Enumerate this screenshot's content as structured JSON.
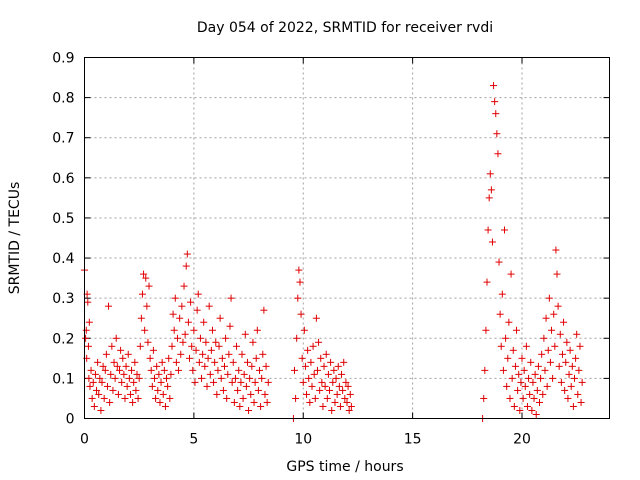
{
  "chart_data": {
    "type": "scatter",
    "title": "Day 054 of 2022, SRMTID for receiver rvdi",
    "xlabel": "GPS time / hours",
    "ylabel": "SRMTID / TECUs",
    "xlim": [
      0,
      24
    ],
    "ylim": [
      0,
      0.9
    ],
    "x_ticks": [
      "0",
      "5",
      "10",
      "15",
      "20"
    ],
    "y_ticks": [
      "0",
      "0.1",
      "0.2",
      "0.3",
      "0.4",
      "0.5",
      "0.6",
      "0.7",
      "0.8",
      "0.9"
    ],
    "marker": "+",
    "color": "#e00000",
    "grid": true,
    "series": [
      {
        "name": "SRMTID",
        "points": [
          [
            0.0,
            0.37
          ],
          [
            0.05,
            0.2
          ],
          [
            0.08,
            0.22
          ],
          [
            0.1,
            0.15
          ],
          [
            0.12,
            0.31
          ],
          [
            0.15,
            0.29
          ],
          [
            0.18,
            0.18
          ],
          [
            0.2,
            0.1
          ],
          [
            0.22,
            0.24
          ],
          [
            0.25,
            0.08
          ],
          [
            0.3,
            0.12
          ],
          [
            0.35,
            0.05
          ],
          [
            0.4,
            0.09
          ],
          [
            0.45,
            0.03
          ],
          [
            0.5,
            0.11
          ],
          [
            0.55,
            0.07
          ],
          [
            0.6,
            0.14
          ],
          [
            0.65,
            0.06
          ],
          [
            0.7,
            0.1
          ],
          [
            0.75,
            0.02
          ],
          [
            0.8,
            0.09
          ],
          [
            0.85,
            0.13
          ],
          [
            0.9,
            0.05
          ],
          [
            0.95,
            0.12
          ],
          [
            1.0,
            0.16
          ],
          [
            1.05,
            0.08
          ],
          [
            1.1,
            0.28
          ],
          [
            1.15,
            0.04
          ],
          [
            1.2,
            0.11
          ],
          [
            1.25,
            0.18
          ],
          [
            1.3,
            0.07
          ],
          [
            1.35,
            0.14
          ],
          [
            1.4,
            0.1
          ],
          [
            1.45,
            0.2
          ],
          [
            1.5,
            0.13
          ],
          [
            1.55,
            0.06
          ],
          [
            1.6,
            0.12
          ],
          [
            1.65,
            0.17
          ],
          [
            1.7,
            0.09
          ],
          [
            1.75,
            0.15
          ],
          [
            1.8,
            0.11
          ],
          [
            1.85,
            0.05
          ],
          [
            1.9,
            0.13
          ],
          [
            1.95,
            0.08
          ],
          [
            2.0,
            0.16
          ],
          [
            2.05,
            0.1
          ],
          [
            2.1,
            0.06
          ],
          [
            2.15,
            0.12
          ],
          [
            2.2,
            0.04
          ],
          [
            2.25,
            0.09
          ],
          [
            2.3,
            0.14
          ],
          [
            2.35,
            0.07
          ],
          [
            2.4,
            0.11
          ],
          [
            2.45,
            0.05
          ],
          [
            2.5,
            0.1
          ],
          [
            2.55,
            0.18
          ],
          [
            2.6,
            0.25
          ],
          [
            2.65,
            0.31
          ],
          [
            2.7,
            0.36
          ],
          [
            2.75,
            0.22
          ],
          [
            2.8,
            0.35
          ],
          [
            2.85,
            0.28
          ],
          [
            2.9,
            0.19
          ],
          [
            2.95,
            0.33
          ],
          [
            3.0,
            0.15
          ],
          [
            3.05,
            0.12
          ],
          [
            3.1,
            0.08
          ],
          [
            3.15,
            0.17
          ],
          [
            3.2,
            0.1
          ],
          [
            3.25,
            0.05
          ],
          [
            3.3,
            0.13
          ],
          [
            3.35,
            0.07
          ],
          [
            3.4,
            0.11
          ],
          [
            3.45,
            0.04
          ],
          [
            3.5,
            0.09
          ],
          [
            3.55,
            0.14
          ],
          [
            3.6,
            0.06
          ],
          [
            3.65,
            0.12
          ],
          [
            3.7,
            0.03
          ],
          [
            3.75,
            0.1
          ],
          [
            3.8,
            0.08
          ],
          [
            3.85,
            0.15
          ],
          [
            3.9,
            0.05
          ],
          [
            3.95,
            0.11
          ],
          [
            4.0,
            0.18
          ],
          [
            4.05,
            0.26
          ],
          [
            4.1,
            0.22
          ],
          [
            4.15,
            0.3
          ],
          [
            4.2,
            0.14
          ],
          [
            4.25,
            0.2
          ],
          [
            4.3,
            0.12
          ],
          [
            4.35,
            0.25
          ],
          [
            4.4,
            0.16
          ],
          [
            4.45,
            0.28
          ],
          [
            4.5,
            0.19
          ],
          [
            4.55,
            0.33
          ],
          [
            4.6,
            0.21
          ],
          [
            4.65,
            0.38
          ],
          [
            4.7,
            0.41
          ],
          [
            4.75,
            0.24
          ],
          [
            4.8,
            0.15
          ],
          [
            4.85,
            0.29
          ],
          [
            4.9,
            0.18
          ],
          [
            4.95,
            0.12
          ],
          [
            5.0,
            0.22
          ],
          [
            5.05,
            0.09
          ],
          [
            5.1,
            0.17
          ],
          [
            5.15,
            0.27
          ],
          [
            5.2,
            0.31
          ],
          [
            5.25,
            0.14
          ],
          [
            5.3,
            0.2
          ],
          [
            5.35,
            0.1
          ],
          [
            5.4,
            0.16
          ],
          [
            5.45,
            0.24
          ],
          [
            5.5,
            0.13
          ],
          [
            5.55,
            0.19
          ],
          [
            5.6,
            0.08
          ],
          [
            5.65,
            0.15
          ],
          [
            5.7,
            0.28
          ],
          [
            5.75,
            0.11
          ],
          [
            5.8,
            0.17
          ],
          [
            5.85,
            0.22
          ],
          [
            5.9,
            0.09
          ],
          [
            5.95,
            0.14
          ],
          [
            6.0,
            0.19
          ],
          [
            6.05,
            0.06
          ],
          [
            6.1,
            0.12
          ],
          [
            6.15,
            0.18
          ],
          [
            6.2,
            0.25
          ],
          [
            6.25,
            0.1
          ],
          [
            6.3,
            0.15
          ],
          [
            6.35,
            0.07
          ],
          [
            6.4,
            0.13
          ],
          [
            6.45,
            0.2
          ],
          [
            6.5,
            0.05
          ],
          [
            6.55,
            0.11
          ],
          [
            6.6,
            0.16
          ],
          [
            6.65,
            0.23
          ],
          [
            6.7,
            0.3
          ],
          [
            6.75,
            0.09
          ],
          [
            6.8,
            0.14
          ],
          [
            6.85,
            0.04
          ],
          [
            6.9,
            0.1
          ],
          [
            6.95,
            0.18
          ],
          [
            7.0,
            0.07
          ],
          [
            7.05,
            0.12
          ],
          [
            7.1,
            0.03
          ],
          [
            7.15,
            0.09
          ],
          [
            7.2,
            0.16
          ],
          [
            7.25,
            0.05
          ],
          [
            7.3,
            0.11
          ],
          [
            7.35,
            0.21
          ],
          [
            7.4,
            0.08
          ],
          [
            7.45,
            0.14
          ],
          [
            7.5,
            0.02
          ],
          [
            7.55,
            0.1
          ],
          [
            7.6,
            0.06
          ],
          [
            7.65,
            0.13
          ],
          [
            7.7,
            0.19
          ],
          [
            7.75,
            0.04
          ],
          [
            7.8,
            0.09
          ],
          [
            7.85,
            0.15
          ],
          [
            7.9,
            0.22
          ],
          [
            7.95,
            0.07
          ],
          [
            8.0,
            0.12
          ],
          [
            8.05,
            0.03
          ],
          [
            8.1,
            0.1
          ],
          [
            8.15,
            0.16
          ],
          [
            8.2,
            0.27
          ],
          [
            8.25,
            0.06
          ],
          [
            8.3,
            0.13
          ],
          [
            8.35,
            0.04
          ],
          [
            8.4,
            0.09
          ],
          [
            9.55,
            0.0
          ],
          [
            9.6,
            0.12
          ],
          [
            9.65,
            0.05
          ],
          [
            9.7,
            0.2
          ],
          [
            9.75,
            0.3
          ],
          [
            9.8,
            0.37
          ],
          [
            9.85,
            0.34
          ],
          [
            9.9,
            0.26
          ],
          [
            9.95,
            0.15
          ],
          [
            10.0,
            0.09
          ],
          [
            10.05,
            0.22
          ],
          [
            10.1,
            0.13
          ],
          [
            10.15,
            0.06
          ],
          [
            10.2,
            0.17
          ],
          [
            10.25,
            0.1
          ],
          [
            10.3,
            0.04
          ],
          [
            10.35,
            0.14
          ],
          [
            10.4,
            0.08
          ],
          [
            10.45,
            0.18
          ],
          [
            10.5,
            0.11
          ],
          [
            10.55,
            0.05
          ],
          [
            10.6,
            0.25
          ],
          [
            10.65,
            0.12
          ],
          [
            10.7,
            0.19
          ],
          [
            10.75,
            0.07
          ],
          [
            10.8,
            0.15
          ],
          [
            10.85,
            0.09
          ],
          [
            10.9,
            0.03
          ],
          [
            10.95,
            0.13
          ],
          [
            11.0,
            0.08
          ],
          [
            11.05,
            0.16
          ],
          [
            11.1,
            0.05
          ],
          [
            11.15,
            0.11
          ],
          [
            11.2,
            0.07
          ],
          [
            11.25,
            0.14
          ],
          [
            11.3,
            0.02
          ],
          [
            11.35,
            0.09
          ],
          [
            11.4,
            0.12
          ],
          [
            11.45,
            0.04
          ],
          [
            11.5,
            0.1
          ],
          [
            11.55,
            0.06
          ],
          [
            11.6,
            0.13
          ],
          [
            11.65,
            0.08
          ],
          [
            11.7,
            0.03
          ],
          [
            11.75,
            0.11
          ],
          [
            11.8,
            0.07
          ],
          [
            11.85,
            0.14
          ],
          [
            11.9,
            0.05
          ],
          [
            11.95,
            0.09
          ],
          [
            12.0,
            0.04
          ],
          [
            12.05,
            0.08
          ],
          [
            12.1,
            0.02
          ],
          [
            12.15,
            0.06
          ],
          [
            12.2,
            0.03
          ],
          [
            18.2,
            0.0
          ],
          [
            18.25,
            0.05
          ],
          [
            18.3,
            0.12
          ],
          [
            18.35,
            0.22
          ],
          [
            18.4,
            0.34
          ],
          [
            18.45,
            0.47
          ],
          [
            18.5,
            0.55
          ],
          [
            18.55,
            0.61
          ],
          [
            18.6,
            0.57
          ],
          [
            18.65,
            0.44
          ],
          [
            18.7,
            0.83
          ],
          [
            18.75,
            0.79
          ],
          [
            18.8,
            0.76
          ],
          [
            18.85,
            0.71
          ],
          [
            18.9,
            0.66
          ],
          [
            18.95,
            0.39
          ],
          [
            19.0,
            0.26
          ],
          [
            19.05,
            0.18
          ],
          [
            19.1,
            0.31
          ],
          [
            19.15,
            0.12
          ],
          [
            19.2,
            0.47
          ],
          [
            19.25,
            0.2
          ],
          [
            19.3,
            0.08
          ],
          [
            19.35,
            0.15
          ],
          [
            19.4,
            0.24
          ],
          [
            19.45,
            0.05
          ],
          [
            19.5,
            0.36
          ],
          [
            19.55,
            0.1
          ],
          [
            19.6,
            0.17
          ],
          [
            19.65,
            0.03
          ],
          [
            19.7,
            0.13
          ],
          [
            19.75,
            0.22
          ],
          [
            19.8,
            0.07
          ],
          [
            19.85,
            0.11
          ],
          [
            19.9,
            0.02
          ],
          [
            19.95,
            0.09
          ],
          [
            20.0,
            0.15
          ],
          [
            20.05,
            0.05
          ],
          [
            20.1,
            0.12
          ],
          [
            20.15,
            0.08
          ],
          [
            20.2,
            0.18
          ],
          [
            20.25,
            0.03
          ],
          [
            20.3,
            0.1
          ],
          [
            20.35,
            0.06
          ],
          [
            20.4,
            0.14
          ],
          [
            20.45,
            0.02
          ],
          [
            20.5,
            0.09
          ],
          [
            20.55,
            0.05
          ],
          [
            20.6,
            0.11
          ],
          [
            20.65,
            0.01
          ],
          [
            20.7,
            0.07
          ],
          [
            20.75,
            0.13
          ],
          [
            20.8,
            0.04
          ],
          [
            20.85,
            0.1
          ],
          [
            20.9,
            0.16
          ],
          [
            20.95,
            0.06
          ],
          [
            21.0,
            0.2
          ],
          [
            21.05,
            0.12
          ],
          [
            21.1,
            0.25
          ],
          [
            21.15,
            0.08
          ],
          [
            21.2,
            0.17
          ],
          [
            21.25,
            0.3
          ],
          [
            21.3,
            0.14
          ],
          [
            21.35,
            0.22
          ],
          [
            21.4,
            0.1
          ],
          [
            21.45,
            0.26
          ],
          [
            21.5,
            0.18
          ],
          [
            21.55,
            0.42
          ],
          [
            21.6,
            0.36
          ],
          [
            21.65,
            0.28
          ],
          [
            21.7,
            0.13
          ],
          [
            21.75,
            0.21
          ],
          [
            21.8,
            0.09
          ],
          [
            21.85,
            0.16
          ],
          [
            21.9,
            0.24
          ],
          [
            21.95,
            0.07
          ],
          [
            22.0,
            0.14
          ],
          [
            22.05,
            0.19
          ],
          [
            22.1,
            0.05
          ],
          [
            22.15,
            0.11
          ],
          [
            22.2,
            0.17
          ],
          [
            22.25,
            0.08
          ],
          [
            22.3,
            0.13
          ],
          [
            22.35,
            0.03
          ],
          [
            22.4,
            0.1
          ],
          [
            22.45,
            0.15
          ],
          [
            22.5,
            0.21
          ],
          [
            22.55,
            0.06
          ],
          [
            22.6,
            0.12
          ],
          [
            22.65,
            0.18
          ],
          [
            22.7,
            0.04
          ],
          [
            22.75,
            0.09
          ]
        ]
      }
    ]
  }
}
